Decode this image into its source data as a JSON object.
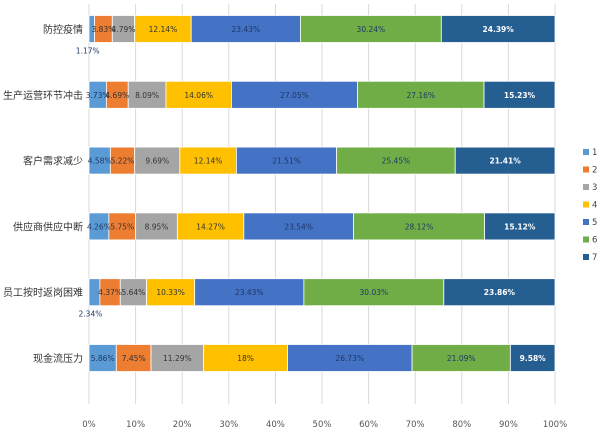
{
  "chart_data": {
    "type": "bar",
    "orientation": "horizontal",
    "stacked": "percent",
    "categories": [
      "防控疫情",
      "生产运营环节冲击",
      "客户需求减少",
      "供应商供应中断",
      "员工按时返岗困难",
      "现金流压力"
    ],
    "series": [
      {
        "name": "1",
        "color": "#5b9bd5",
        "values": [
          1.17,
          3.73,
          4.58,
          4.26,
          2.34,
          5.86
        ],
        "labels": [
          "1.17%",
          "3.73%",
          "4.58%",
          "4.26%",
          "2.34%",
          "5.86%"
        ]
      },
      {
        "name": "2",
        "color": "#ed7d31",
        "values": [
          3.83,
          4.69,
          5.22,
          5.75,
          4.37,
          7.45
        ],
        "labels": [
          "3.83%",
          "4.69%",
          "5.22%",
          "5.75%",
          "4.37%",
          "7.45%"
        ]
      },
      {
        "name": "3",
        "color": "#a5a5a5",
        "values": [
          4.79,
          8.09,
          9.69,
          8.95,
          5.64,
          11.29
        ],
        "labels": [
          "4.79%",
          "8.09%",
          "9.69%",
          "8.95%",
          "5.64%",
          "11.29%"
        ]
      },
      {
        "name": "4",
        "color": "#ffc000",
        "values": [
          12.14,
          14.06,
          12.14,
          14.27,
          10.33,
          18
        ],
        "labels": [
          "12.14%",
          "14.06%",
          "12.14%",
          "14.27%",
          "10.33%",
          "18%"
        ]
      },
      {
        "name": "5",
        "color": "#4472c4",
        "values": [
          23.43,
          27.05,
          21.51,
          23.54,
          23.43,
          26.73
        ],
        "labels": [
          "23.43%",
          "27.05%",
          "21.51%",
          "23.54%",
          "23.43%",
          "26.73%"
        ]
      },
      {
        "name": "6",
        "color": "#70ad47",
        "values": [
          30.24,
          27.16,
          25.45,
          28.12,
          30.03,
          21.09
        ],
        "labels": [
          "30.24%",
          "27.16%",
          "25.45%",
          "28.12%",
          "30.03%",
          "21.09%"
        ]
      },
      {
        "name": "7",
        "color": "#255e91",
        "values": [
          24.39,
          15.23,
          21.41,
          15.12,
          23.86,
          9.58
        ],
        "labels": [
          "24.39%",
          "15.23%",
          "21.41%",
          "15.12%",
          "23.86%",
          "9.58%"
        ]
      }
    ],
    "x_ticks": [
      "0%",
      "10%",
      "20%",
      "30%",
      "40%",
      "50%",
      "60%",
      "70%",
      "80%",
      "90%",
      "100%"
    ],
    "xlim": [
      0,
      100
    ],
    "grid": "vertical",
    "legend": "right",
    "title": "",
    "xlabel": "",
    "ylabel": ""
  }
}
